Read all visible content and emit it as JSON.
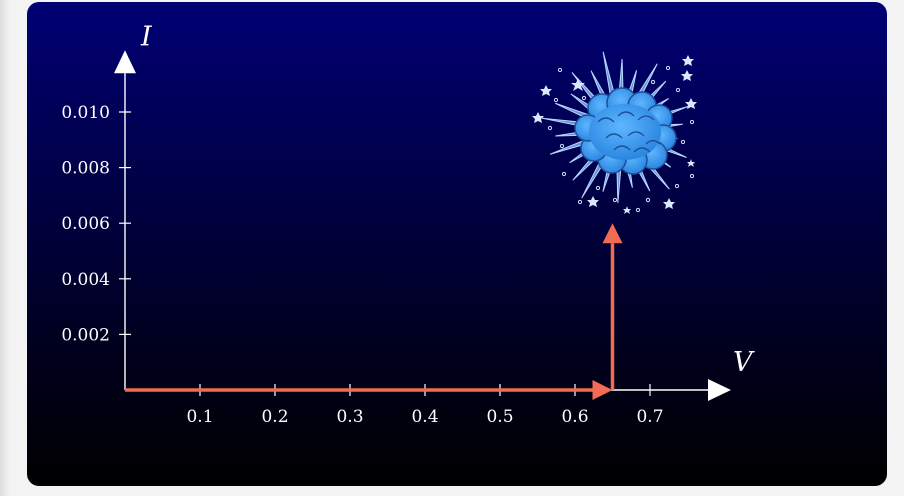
{
  "chart_data": {
    "type": "line",
    "xlabel": "V",
    "ylabel": "I",
    "xticks": [
      0.1,
      0.2,
      0.3,
      0.4,
      0.5,
      0.6,
      0.7
    ],
    "yticks": [
      0.002,
      0.004,
      0.006,
      0.008,
      0.01
    ],
    "xtick_labels": [
      "0.1",
      "0.2",
      "0.3",
      "0.4",
      "0.5",
      "0.6",
      "0.7"
    ],
    "ytick_labels": [
      "0.002",
      "0.004",
      "0.006",
      "0.008",
      "0.010"
    ],
    "xlim": [
      0,
      0.8
    ],
    "ylim": [
      0,
      0.0115
    ],
    "grid": false,
    "series": [
      {
        "color": "#f26b54",
        "x": [
          0,
          0.65,
          0.65
        ],
        "y": [
          0,
          0,
          0.006
        ]
      }
    ],
    "annotation_icon": "explosion-cloud-icon",
    "axis_color": "#ffffff",
    "background": [
      "#000074",
      "#000000"
    ]
  }
}
